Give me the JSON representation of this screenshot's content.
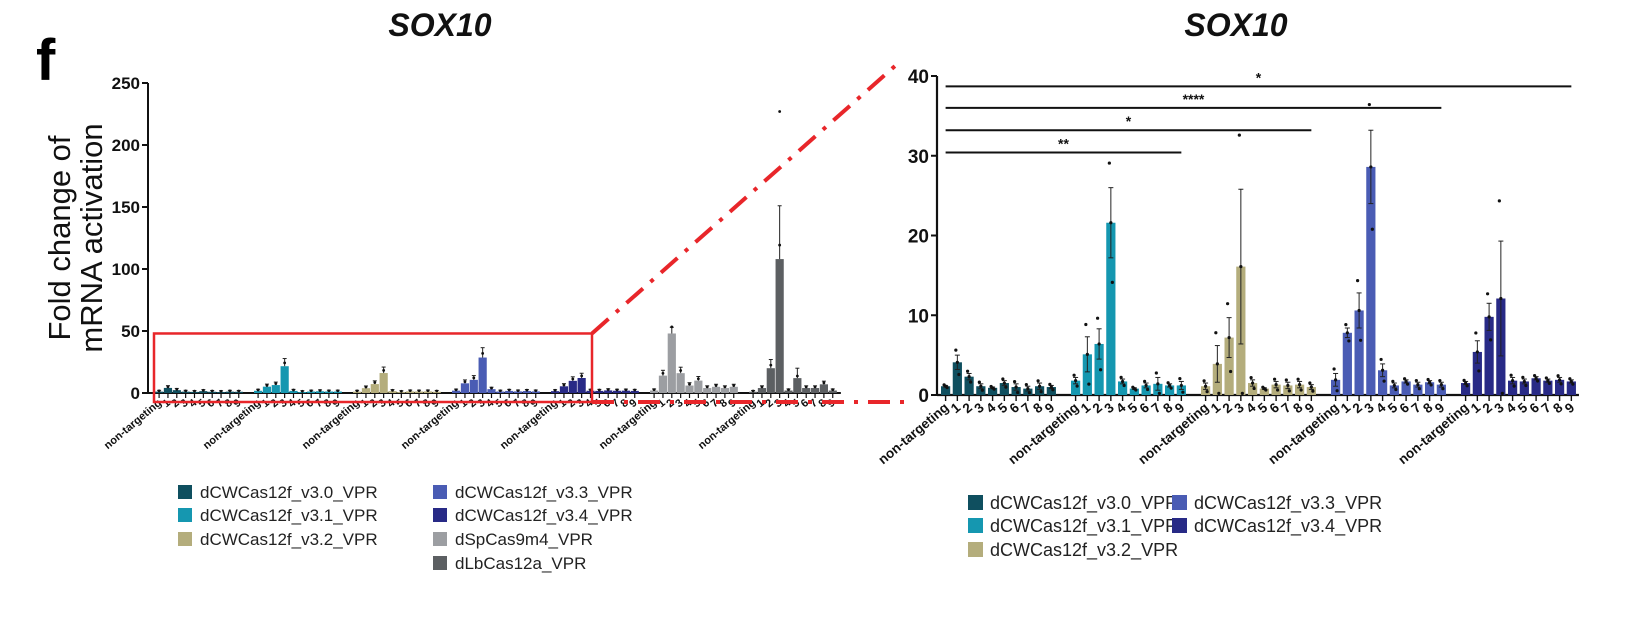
{
  "panel_label": "f",
  "colors": {
    "dCWCas12f_v3.0_VPR": "#0f4f5f",
    "dCWCas12f_v3.1_VPR": "#1597b0",
    "dCWCas12f_v3.2_VPR": "#b4ad7c",
    "dCWCas12f_v3.3_VPR": "#4a5cb4",
    "dCWCas12f_v3.4_VPR": "#282a86",
    "dSpCas9m4_VPR": "#9c9ea2",
    "dLbCas12a_VPR": "#5c5f62",
    "zoom_box": "#e8262a"
  },
  "chart_data": [
    {
      "type": "bar",
      "title": "SOX10",
      "xlabel": "",
      "ylabel": "Fold change of mRNA activation",
      "ylabel_lines": [
        "Fold change of",
        "mRNA activation"
      ],
      "ylim": [
        0,
        250
      ],
      "yticks": [
        0,
        50,
        100,
        150,
        200,
        250
      ],
      "categories": [
        "non-targeting",
        "1",
        "2",
        "3",
        "4",
        "5",
        "6",
        "7",
        "8",
        "9"
      ],
      "legend_position": "bottom",
      "legend": [
        "dCWCas12f_v3.0_VPR",
        "dCWCas12f_v3.1_VPR",
        "dCWCas12f_v3.2_VPR",
        "dCWCas12f_v3.3_VPR",
        "dCWCas12f_v3.4_VPR",
        "dSpCas9m4_VPR",
        "dLbCas12a_VPR"
      ],
      "zoom_region": {
        "y_range": [
          0,
          48
        ],
        "groups": [
          "dCWCas12f_v3.0_VPR",
          "dCWCas12f_v3.1_VPR",
          "dCWCas12f_v3.2_VPR",
          "dCWCas12f_v3.3_VPR",
          "dCWCas12f_v3.4_VPR"
        ]
      },
      "series": [
        {
          "name": "dCWCas12f_v3.0_VPR",
          "values": [
            1.1,
            4.1,
            2.3,
            1.1,
            0.9,
            1.5,
            1.0,
            0.8,
            1.1,
            1.0
          ]
        },
        {
          "name": "dCWCas12f_v3.1_VPR",
          "values": [
            1.8,
            5.1,
            6.4,
            21.6,
            1.7,
            0.8,
            1.2,
            1.4,
            1.2,
            1.2
          ]
        },
        {
          "name": "dCWCas12f_v3.2_VPR",
          "values": [
            1.1,
            3.9,
            7.2,
            16.1,
            1.5,
            0.8,
            1.3,
            1.2,
            1.3,
            1.0
          ]
        },
        {
          "name": "dCWCas12f_v3.3_VPR",
          "values": [
            1.9,
            7.8,
            10.6,
            28.6,
            3.1,
            1.2,
            1.7,
            1.3,
            1.6,
            1.3
          ]
        },
        {
          "name": "dCWCas12f_v3.4_VPR",
          "values": [
            1.5,
            5.4,
            9.8,
            12.1,
            1.8,
            1.7,
            2.1,
            1.8,
            1.9,
            1.7
          ]
        },
        {
          "name": "dSpCas9m4_VPR",
          "values": [
            2.0,
            14.0,
            48.0,
            16.0,
            6.0,
            10.0,
            4.0,
            5.0,
            4.0,
            5.0
          ]
        },
        {
          "name": "dLbCas12a_VPR",
          "values": [
            1.0,
            4.0,
            20.0,
            108.0,
            2.0,
            12.0,
            4.0,
            4.0,
            7.0,
            2.0
          ]
        }
      ],
      "error_upper": {
        "dSpCas9m4_VPR_2": 53,
        "dLbCas12a_VPR_3": 151,
        "dLbCas12a_VPR_2": 27,
        "dLbCas12a_VPR_5": 20
      },
      "outlier_points": {
        "dLbCas12a_VPR_3": 227
      }
    },
    {
      "type": "bar",
      "title": "SOX10",
      "xlabel": "",
      "ylabel": "",
      "ylim": [
        0,
        40
      ],
      "yticks": [
        0,
        10,
        20,
        30,
        40
      ],
      "categories": [
        "non-targeting",
        "1",
        "2",
        "3",
        "4",
        "5",
        "6",
        "7",
        "8",
        "9"
      ],
      "legend_position": "bottom",
      "legend": [
        "dCWCas12f_v3.0_VPR",
        "dCWCas12f_v3.1_VPR",
        "dCWCas12f_v3.2_VPR",
        "dCWCas12f_v3.3_VPR",
        "dCWCas12f_v3.4_VPR"
      ],
      "series": [
        {
          "name": "dCWCas12f_v3.0_VPR",
          "values": [
            1.1,
            4.1,
            2.3,
            1.1,
            0.9,
            1.5,
            1.0,
            0.8,
            1.1,
            1.0
          ],
          "err": [
            0.1,
            0.9,
            0.4,
            0.3,
            0.1,
            0.3,
            0.4,
            0.3,
            0.4,
            0.2
          ]
        },
        {
          "name": "dCWCas12f_v3.1_VPR",
          "values": [
            1.8,
            5.1,
            6.4,
            21.6,
            1.7,
            0.8,
            1.2,
            1.4,
            1.2,
            1.2
          ],
          "err": [
            0.4,
            2.2,
            1.9,
            4.4,
            0.3,
            0.1,
            0.3,
            0.8,
            0.2,
            0.5
          ]
        },
        {
          "name": "dCWCas12f_v3.2_VPR",
          "values": [
            1.1,
            3.9,
            7.2,
            16.1,
            1.5,
            0.8,
            1.3,
            1.2,
            1.3,
            1.0
          ],
          "err": [
            0.4,
            2.3,
            2.5,
            9.7,
            0.4,
            0.1,
            0.4,
            0.4,
            0.4,
            0.3
          ]
        },
        {
          "name": "dCWCas12f_v3.3_VPR",
          "values": [
            1.9,
            7.8,
            10.6,
            28.6,
            3.1,
            1.2,
            1.7,
            1.3,
            1.6,
            1.3
          ],
          "err": [
            0.8,
            0.6,
            2.2,
            4.6,
            0.8,
            0.3,
            0.2,
            0.3,
            0.2,
            0.3
          ]
        },
        {
          "name": "dCWCas12f_v3.4_VPR",
          "values": [
            1.5,
            5.4,
            9.8,
            12.1,
            1.8,
            1.7,
            2.1,
            1.8,
            1.9,
            1.7
          ],
          "err": [
            0.2,
            1.4,
            1.7,
            7.2,
            0.4,
            0.3,
            0.2,
            0.2,
            0.3,
            0.2
          ]
        }
      ],
      "significance": [
        {
          "label": "**",
          "from_group": 0,
          "to_group": 1,
          "to_bar": 9
        },
        {
          "label": "*",
          "from_group": 0,
          "to_group": 2,
          "to_bar": 9
        },
        {
          "label": "****",
          "from_group": 0,
          "to_group": 3,
          "to_bar": 9
        },
        {
          "label": "*",
          "from_group": 0,
          "to_group": 4,
          "to_bar": 9
        }
      ],
      "significance_levels": [
        30.4,
        33.2,
        36.0,
        38.7
      ]
    }
  ]
}
